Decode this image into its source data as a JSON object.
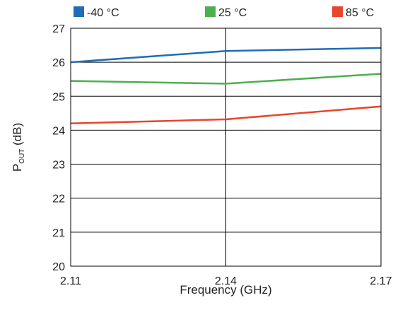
{
  "chart_data": {
    "type": "line",
    "x": [
      2.11,
      2.14,
      2.17
    ],
    "x_tick_labels": [
      "2.11",
      "2.14",
      "2.17"
    ],
    "xlim": [
      2.11,
      2.17
    ],
    "ylim": [
      20,
      27
    ],
    "y_ticks": [
      20,
      21,
      22,
      23,
      24,
      25,
      26,
      27
    ],
    "y_tick_labels": [
      "20",
      "21",
      "22",
      "23",
      "24",
      "25",
      "26",
      "27"
    ],
    "xlabel": "Frequency (GHz)",
    "ylabel": {
      "main": "P",
      "sub": "OUT",
      "unit": " (dB)"
    },
    "grid": true,
    "legend_position": "top",
    "series": [
      {
        "name": "-40 °C",
        "color": "#1f6db5",
        "values": [
          26.0,
          26.33,
          26.42
        ]
      },
      {
        "name": "25 °C",
        "color": "#4caf50",
        "values": [
          25.45,
          25.37,
          25.66
        ]
      },
      {
        "name": "85 °C",
        "color": "#e8452c",
        "values": [
          24.2,
          24.32,
          24.7
        ]
      }
    ]
  }
}
